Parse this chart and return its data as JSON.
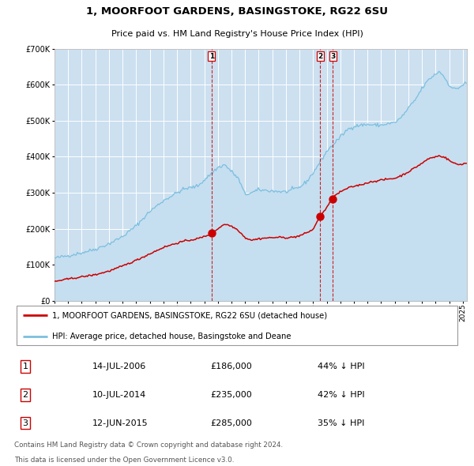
{
  "title": "1, MOORFOOT GARDENS, BASINGSTOKE, RG22 6SU",
  "subtitle": "Price paid vs. HM Land Registry's House Price Index (HPI)",
  "legend_line1": "1, MOORFOOT GARDENS, BASINGSTOKE, RG22 6SU (detached house)",
  "legend_line2": "HPI: Average price, detached house, Basingstoke and Deane",
  "footer1": "Contains HM Land Registry data © Crown copyright and database right 2024.",
  "footer2": "This data is licensed under the Open Government Licence v3.0.",
  "transactions": [
    {
      "label": "1",
      "date": "14-JUL-2006",
      "price": "£186,000",
      "hpi_diff": "44% ↓ HPI",
      "x_year": 2006.536
    },
    {
      "label": "2",
      "date": "10-JUL-2014",
      "price": "£235,000",
      "hpi_diff": "42% ↓ HPI",
      "x_year": 2014.525
    },
    {
      "label": "3",
      "date": "12-JUN-2015",
      "price": "£285,000",
      "hpi_diff": "35% ↓ HPI",
      "x_year": 2015.442
    }
  ],
  "hpi_line_color": "#7bbfdf",
  "hpi_fill_color": "#c5dff0",
  "price_line_color": "#cc0000",
  "background_color": "#ffffff",
  "plot_bg_color": "#cce0f0",
  "grid_color": "#ffffff",
  "vline_color": "#cc0000",
  "dot_color": "#cc0000",
  "ylim": [
    0,
    700000
  ],
  "xlim_start": 1995.0,
  "xlim_end": 2025.3,
  "title_fontsize": 9.5,
  "subtitle_fontsize": 8.0
}
